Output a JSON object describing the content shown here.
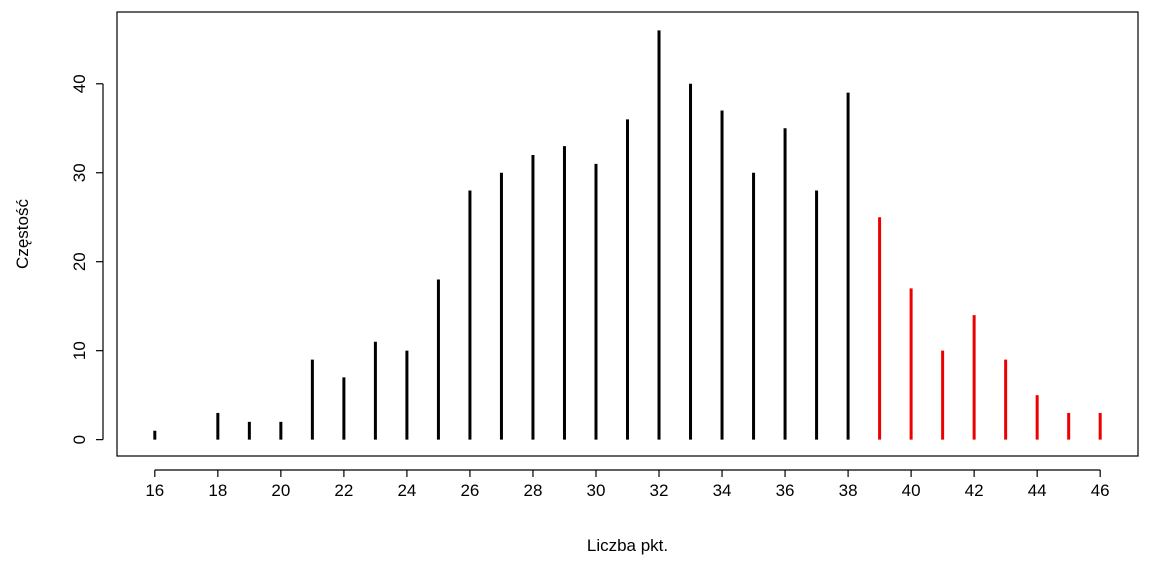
{
  "chart_data": {
    "type": "bar",
    "title": "",
    "xlabel": "Liczba pkt.",
    "ylabel": "Częstość",
    "x": [
      16,
      18,
      19,
      20,
      21,
      22,
      23,
      24,
      25,
      26,
      27,
      28,
      29,
      30,
      31,
      32,
      33,
      34,
      35,
      36,
      37,
      38,
      39,
      40,
      41,
      42,
      43,
      44,
      45,
      46
    ],
    "values": [
      1,
      3,
      2,
      2,
      9,
      7,
      11,
      10,
      18,
      28,
      30,
      32,
      33,
      31,
      36,
      46,
      40,
      37,
      30,
      35,
      28,
      39,
      25,
      17,
      10,
      14,
      9,
      5,
      3,
      3
    ],
    "highlight_from_x": 39,
    "colors": {
      "default": "#000000",
      "highlight": "#ee0000"
    },
    "xlim": [
      14.8,
      47.2
    ],
    "ylim": [
      -1.84,
      48.07
    ],
    "xticks": [
      16,
      18,
      20,
      22,
      24,
      26,
      28,
      30,
      32,
      34,
      36,
      38,
      40,
      42,
      44,
      46
    ],
    "yticks": [
      0,
      10,
      20,
      30,
      40
    ],
    "grid": false,
    "legend": "none"
  }
}
